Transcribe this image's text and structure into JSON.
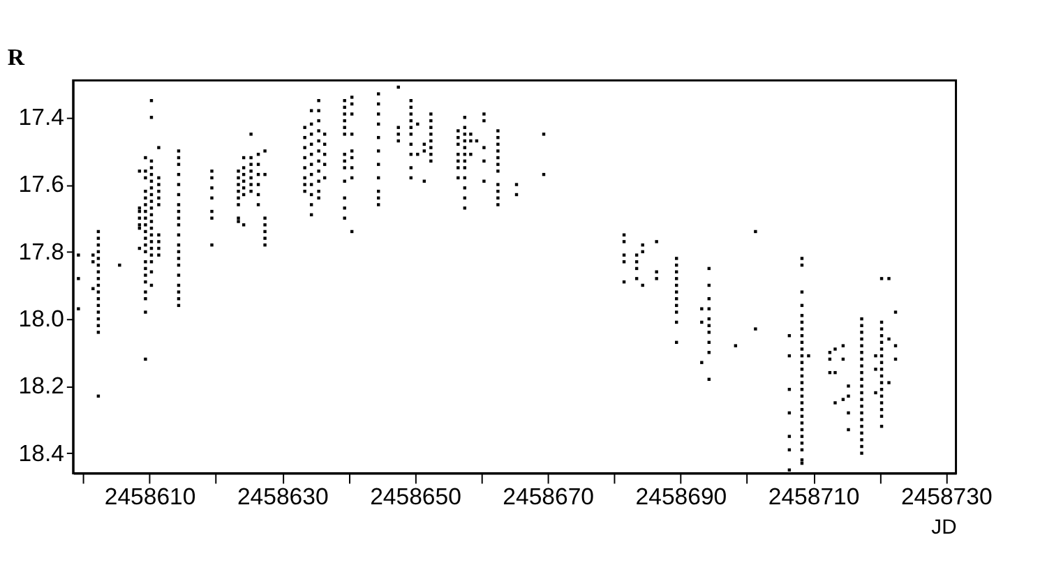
{
  "chart_data": {
    "type": "scatter",
    "xlabel": "JD",
    "ylabel": "R",
    "marker": "square",
    "grid": false,
    "xlim": [
      2458598.5,
      2458731.5
    ],
    "ylim": [
      18.46,
      17.29
    ],
    "xticks": [
      {
        "value": 2458600,
        "label": null
      },
      2458610,
      {
        "value": 2458620,
        "label": null
      },
      2458630,
      {
        "value": 2458640,
        "label": null
      },
      2458650,
      {
        "value": 2458660,
        "label": null
      },
      2458670,
      {
        "value": 2458680,
        "label": null
      },
      2458690,
      {
        "value": 2458700,
        "label": null
      },
      2458710,
      {
        "value": 2458720,
        "label": null
      },
      2458730
    ],
    "yticks": [
      17.4,
      17.6,
      17.8,
      {
        "value": 18,
        "label": "18.0"
      },
      18.2,
      18.4
    ],
    "series": [
      {
        "color": "#000000",
        "x": [
          2458599.3,
          2458599.3,
          2458599.3
        ],
        "values": [
          17.81,
          17.88,
          17.97
        ]
      },
      {
        "color": "#000000",
        "x": [
          2458601.5,
          2458601.5,
          2458601.5
        ],
        "values": [
          17.81,
          17.83,
          17.91
        ]
      },
      {
        "color": "#000000",
        "x": [
          2458602.3,
          2458602.3,
          2458602.3,
          2458602.3,
          2458602.3,
          2458602.3,
          2458602.3,
          2458602.3,
          2458602.3,
          2458602.3,
          2458602.3,
          2458602.3,
          2458602.3,
          2458602.3,
          2458602.3,
          2458602.3,
          2458602.3
        ],
        "values": [
          17.74,
          17.76,
          17.78,
          17.8,
          17.82,
          17.84,
          17.86,
          17.88,
          17.9,
          17.92,
          17.94,
          17.96,
          17.98,
          18.0,
          18.02,
          18.04,
          18.23
        ]
      },
      {
        "color": "#000000",
        "x": [
          2458605.5
        ],
        "values": [
          17.84
        ]
      },
      {
        "color": "#000000",
        "x": [
          2458608.5,
          2458608.5,
          2458608.5,
          2458608.5,
          2458608.5,
          2458608.5,
          2458608.5
        ],
        "values": [
          17.56,
          17.67,
          17.68,
          17.7,
          17.72,
          17.73,
          17.79
        ]
      },
      {
        "color": "#000000",
        "x": [
          2458609.4,
          2458609.4,
          2458609.4,
          2458609.4,
          2458609.4,
          2458609.4,
          2458609.4,
          2458609.4,
          2458609.4,
          2458609.4,
          2458609.4,
          2458609.4,
          2458609.4,
          2458609.4,
          2458609.4,
          2458609.4,
          2458609.4,
          2458609.4,
          2458609.4,
          2458609.4,
          2458609.4
        ],
        "values": [
          17.52,
          17.56,
          17.58,
          17.62,
          17.64,
          17.66,
          17.68,
          17.7,
          17.72,
          17.74,
          17.76,
          17.78,
          17.8,
          17.83,
          17.85,
          17.87,
          17.89,
          17.92,
          17.94,
          17.98,
          18.12
        ]
      },
      {
        "color": "#000000",
        "x": [
          2458610.3,
          2458610.3,
          2458610.3,
          2458610.3,
          2458610.3,
          2458610.3,
          2458610.3,
          2458610.3,
          2458610.3,
          2458610.3,
          2458610.3,
          2458610.3,
          2458610.3,
          2458610.3,
          2458610.3,
          2458610.3,
          2458610.3,
          2458610.3,
          2458610.3,
          2458610.3
        ],
        "values": [
          17.35,
          17.4,
          17.53,
          17.55,
          17.57,
          17.59,
          17.61,
          17.63,
          17.65,
          17.67,
          17.69,
          17.71,
          17.73,
          17.75,
          17.77,
          17.79,
          17.81,
          17.83,
          17.86,
          17.9
        ]
      },
      {
        "color": "#000000",
        "x": [
          2458611.4,
          2458611.4,
          2458611.4,
          2458611.4,
          2458611.4,
          2458611.4,
          2458611.4,
          2458611.4,
          2458611.4,
          2458611.4
        ],
        "values": [
          17.49,
          17.58,
          17.6,
          17.62,
          17.64,
          17.66,
          17.75,
          17.77,
          17.79,
          17.81
        ]
      },
      {
        "color": "#000000",
        "x": [
          2458614.4,
          2458614.4,
          2458614.4,
          2458614.4,
          2458614.4,
          2458614.4,
          2458614.4,
          2458614.4,
          2458614.4,
          2458614.4,
          2458614.4,
          2458614.4,
          2458614.4,
          2458614.4,
          2458614.4,
          2458614.4,
          2458614.4,
          2458614.4,
          2458614.4,
          2458614.4
        ],
        "values": [
          17.5,
          17.52,
          17.54,
          17.57,
          17.6,
          17.63,
          17.66,
          17.68,
          17.7,
          17.72,
          17.75,
          17.78,
          17.8,
          17.82,
          17.84,
          17.87,
          17.9,
          17.92,
          17.94,
          17.96
        ]
      },
      {
        "color": "#000000",
        "x": [
          2458619.4,
          2458619.4,
          2458619.4,
          2458619.4,
          2458619.4,
          2458619.4,
          2458619.4
        ],
        "values": [
          17.56,
          17.58,
          17.61,
          17.64,
          17.68,
          17.7,
          17.78
        ]
      },
      {
        "color": "#000000",
        "x": [
          2458623.4,
          2458623.4,
          2458623.4,
          2458623.4,
          2458623.4,
          2458623.4,
          2458623.4,
          2458623.4
        ],
        "values": [
          17.56,
          17.58,
          17.6,
          17.62,
          17.64,
          17.66,
          17.7,
          17.71
        ]
      },
      {
        "color": "#000000",
        "x": [
          2458624.2,
          2458624.2,
          2458624.2,
          2458624.2,
          2458624.2,
          2458624.2,
          2458624.2
        ],
        "values": [
          17.52,
          17.55,
          17.57,
          17.59,
          17.61,
          17.63,
          17.72
        ]
      },
      {
        "color": "#000000",
        "x": [
          2458625.3,
          2458625.3,
          2458625.3,
          2458625.3,
          2458625.3,
          2458625.3,
          2458625.3
        ],
        "values": [
          17.45,
          17.52,
          17.54,
          17.56,
          17.58,
          17.6,
          17.62
        ]
      },
      {
        "color": "#000000",
        "x": [
          2458626.4,
          2458626.4,
          2458626.4,
          2458626.4,
          2458626.4,
          2458626.4
        ],
        "values": [
          17.51,
          17.54,
          17.57,
          17.6,
          17.63,
          17.66
        ]
      },
      {
        "color": "#000000",
        "x": [
          2458627.4,
          2458627.4,
          2458627.4,
          2458627.4,
          2458627.4,
          2458627.4,
          2458627.4
        ],
        "values": [
          17.5,
          17.57,
          17.7,
          17.72,
          17.74,
          17.76,
          17.78
        ]
      },
      {
        "color": "#000000",
        "x": [
          2458633.4,
          2458633.4,
          2458633.4,
          2458633.4,
          2458633.4,
          2458633.4,
          2458633.4,
          2458633.4
        ],
        "values": [
          17.43,
          17.46,
          17.49,
          17.52,
          17.55,
          17.58,
          17.6,
          17.62
        ]
      },
      {
        "color": "#000000",
        "x": [
          2458634.4,
          2458634.4,
          2458634.4,
          2458634.4,
          2458634.4,
          2458634.4,
          2458634.4,
          2458634.4,
          2458634.4,
          2458634.4,
          2458634.4
        ],
        "values": [
          17.38,
          17.42,
          17.45,
          17.48,
          17.51,
          17.54,
          17.57,
          17.6,
          17.63,
          17.66,
          17.69
        ]
      },
      {
        "color": "#000000",
        "x": [
          2458635.5,
          2458635.5,
          2458635.5,
          2458635.5,
          2458635.5,
          2458635.5,
          2458635.5,
          2458635.5,
          2458635.5,
          2458635.5,
          2458635.5
        ],
        "values": [
          17.35,
          17.38,
          17.41,
          17.44,
          17.47,
          17.5,
          17.53,
          17.56,
          17.59,
          17.62,
          17.64
        ]
      },
      {
        "color": "#000000",
        "x": [
          2458636.4,
          2458636.4,
          2458636.4,
          2458636.4,
          2458636.4
        ],
        "values": [
          17.45,
          17.48,
          17.51,
          17.54,
          17.58
        ]
      },
      {
        "color": "#000000",
        "x": [
          2458639.4,
          2458639.4,
          2458639.4,
          2458639.4,
          2458639.4,
          2458639.4,
          2458639.4,
          2458639.4,
          2458639.4,
          2458639.4,
          2458639.4,
          2458639.4,
          2458639.4
        ],
        "values": [
          17.35,
          17.37,
          17.39,
          17.41,
          17.43,
          17.45,
          17.51,
          17.53,
          17.55,
          17.59,
          17.64,
          17.67,
          17.7
        ]
      },
      {
        "color": "#000000",
        "x": [
          2458640.5,
          2458640.5,
          2458640.5,
          2458640.5,
          2458640.5,
          2458640.5,
          2458640.5,
          2458640.5,
          2458640.5
        ],
        "values": [
          17.34,
          17.36,
          17.39,
          17.45,
          17.5,
          17.52,
          17.55,
          17.58,
          17.74
        ]
      },
      {
        "color": "#000000",
        "x": [
          2458644.5,
          2458644.5,
          2458644.5,
          2458644.5,
          2458644.5,
          2458644.5,
          2458644.5,
          2458644.5,
          2458644.5,
          2458644.5,
          2458644.5
        ],
        "values": [
          17.33,
          17.36,
          17.39,
          17.42,
          17.46,
          17.5,
          17.54,
          17.58,
          17.62,
          17.64,
          17.66
        ]
      },
      {
        "color": "#000000",
        "x": [
          2458647.5,
          2458647.5,
          2458647.5,
          2458647.5
        ],
        "values": [
          17.31,
          17.43,
          17.45,
          17.47
        ]
      },
      {
        "color": "#000000",
        "x": [
          2458649.4,
          2458649.4,
          2458649.4,
          2458649.4,
          2458649.4,
          2458649.4,
          2458649.4,
          2458649.4,
          2458649.4,
          2458649.4
        ],
        "values": [
          17.35,
          17.37,
          17.39,
          17.41,
          17.43,
          17.45,
          17.48,
          17.51,
          17.55,
          17.58
        ]
      },
      {
        "color": "#000000",
        "x": [
          2458650.4,
          2458650.4,
          2458651.4,
          2458651.4,
          2458651.4
        ],
        "values": [
          17.42,
          17.51,
          17.48,
          17.5,
          17.59
        ]
      },
      {
        "color": "#000000",
        "x": [
          2458652.4,
          2458652.4,
          2458652.4,
          2458652.4,
          2458652.4,
          2458652.4,
          2458652.4,
          2458652.4
        ],
        "values": [
          17.39,
          17.41,
          17.43,
          17.45,
          17.47,
          17.49,
          17.51,
          17.53
        ]
      },
      {
        "color": "#000000",
        "x": [
          2458656.5,
          2458656.5,
          2458656.5,
          2458656.5,
          2458656.5,
          2458656.5,
          2458656.5
        ],
        "values": [
          17.44,
          17.46,
          17.48,
          17.51,
          17.53,
          17.55,
          17.58
        ]
      },
      {
        "color": "#000000",
        "x": [
          2458657.5,
          2458657.5,
          2458657.5,
          2458657.5,
          2458657.5,
          2458657.5,
          2458657.5,
          2458657.5,
          2458657.5,
          2458657.5,
          2458657.5,
          2458657.5
        ],
        "values": [
          17.4,
          17.43,
          17.45,
          17.47,
          17.49,
          17.51,
          17.53,
          17.55,
          17.58,
          17.61,
          17.64,
          17.67
        ]
      },
      {
        "color": "#000000",
        "x": [
          2458658.4,
          2458658.4,
          2458658.4,
          2458659.3
        ],
        "values": [
          17.45,
          17.47,
          17.51,
          17.47
        ]
      },
      {
        "color": "#000000",
        "x": [
          2458660.4,
          2458660.4,
          2458660.4,
          2458660.4,
          2458660.4
        ],
        "values": [
          17.39,
          17.41,
          17.49,
          17.53,
          17.59
        ]
      },
      {
        "color": "#000000",
        "x": [
          2458662.5,
          2458662.5,
          2458662.5,
          2458662.5,
          2458662.5,
          2458662.5,
          2458662.5,
          2458662.5,
          2458662.5,
          2458662.5,
          2458662.5
        ],
        "values": [
          17.44,
          17.46,
          17.48,
          17.5,
          17.52,
          17.54,
          17.56,
          17.6,
          17.62,
          17.64,
          17.66
        ]
      },
      {
        "color": "#000000",
        "x": [
          2458665.3,
          2458665.3,
          2458669.4,
          2458669.4
        ],
        "values": [
          17.6,
          17.63,
          17.45,
          17.57
        ]
      },
      {
        "color": "#000000",
        "x": [
          2458681.5,
          2458681.5,
          2458681.5,
          2458681.5,
          2458681.5
        ],
        "values": [
          17.75,
          17.77,
          17.81,
          17.83,
          17.89
        ]
      },
      {
        "color": "#000000",
        "x": [
          2458683.4,
          2458683.4,
          2458683.4,
          2458683.4,
          2458684.3,
          2458684.3,
          2458684.3
        ],
        "values": [
          17.81,
          17.83,
          17.85,
          17.88,
          17.78,
          17.8,
          17.9
        ]
      },
      {
        "color": "#000000",
        "x": [
          2458686.4,
          2458686.4,
          2458686.4
        ],
        "values": [
          17.77,
          17.86,
          17.88
        ]
      },
      {
        "color": "#000000",
        "x": [
          2458689.4,
          2458689.4,
          2458689.4,
          2458689.4,
          2458689.4,
          2458689.4,
          2458689.4,
          2458689.4,
          2458689.4,
          2458689.4,
          2458689.4
        ],
        "values": [
          17.82,
          17.84,
          17.86,
          17.88,
          17.9,
          17.92,
          17.94,
          17.96,
          17.98,
          18.01,
          18.07
        ]
      },
      {
        "color": "#000000",
        "x": [
          2458693.2,
          2458693.2,
          2458693.2
        ],
        "values": [
          17.97,
          18.01,
          18.13
        ]
      },
      {
        "color": "#000000",
        "x": [
          2458694.3,
          2458694.3,
          2458694.3,
          2458694.3,
          2458694.3,
          2458694.3,
          2458694.3,
          2458694.3,
          2458694.3,
          2458694.3
        ],
        "values": [
          17.85,
          17.9,
          17.94,
          17.97,
          18.0,
          18.02,
          18.04,
          18.07,
          18.1,
          18.18
        ]
      },
      {
        "color": "#000000",
        "x": [
          2458698.3,
          2458701.3,
          2458701.3
        ],
        "values": [
          18.08,
          17.74,
          18.03
        ]
      },
      {
        "color": "#000000",
        "x": [
          2458706.4,
          2458706.4,
          2458706.4,
          2458706.4,
          2458706.4,
          2458706.4,
          2458706.4
        ],
        "values": [
          18.05,
          18.11,
          18.21,
          18.28,
          18.35,
          18.39,
          18.45
        ]
      },
      {
        "color": "#000000",
        "x": [
          2458708.3,
          2458708.3,
          2458708.3,
          2458708.3,
          2458708.3,
          2458708.3,
          2458708.3,
          2458708.3,
          2458708.3,
          2458708.3,
          2458708.3,
          2458708.3,
          2458708.3,
          2458708.3,
          2458708.3,
          2458708.3,
          2458708.3,
          2458708.3,
          2458708.3,
          2458708.3,
          2458708.3,
          2458708.3,
          2458708.3,
          2458708.3,
          2458708.3,
          2458708.3,
          2458708.3
        ],
        "values": [
          17.82,
          17.84,
          17.92,
          17.96,
          17.99,
          18.01,
          18.03,
          18.05,
          18.07,
          18.09,
          18.11,
          18.13,
          18.15,
          18.17,
          18.19,
          18.21,
          18.23,
          18.25,
          18.27,
          18.29,
          18.31,
          18.33,
          18.35,
          18.37,
          18.39,
          18.42,
          18.43
        ]
      },
      {
        "color": "#000000",
        "x": [
          2458709.3,
          2458712.5,
          2458712.5,
          2458712.5,
          2458713.3,
          2458713.3,
          2458713.3
        ],
        "values": [
          18.11,
          18.1,
          18.12,
          18.16,
          18.09,
          18.16,
          18.25
        ]
      },
      {
        "color": "#000000",
        "x": [
          2458714.5,
          2458714.5,
          2458714.5,
          2458715.3,
          2458715.3,
          2458715.3,
          2458715.3
        ],
        "values": [
          18.08,
          18.12,
          18.24,
          18.2,
          18.23,
          18.28,
          18.33
        ]
      },
      {
        "color": "#000000",
        "x": [
          2458717.3,
          2458717.3,
          2458717.3,
          2458717.3,
          2458717.3,
          2458717.3,
          2458717.3,
          2458717.3,
          2458717.3,
          2458717.3,
          2458717.3,
          2458717.3,
          2458717.3,
          2458717.3,
          2458717.3,
          2458717.3,
          2458717.3,
          2458717.3,
          2458717.3,
          2458717.3,
          2458717.3
        ],
        "values": [
          18.0,
          18.02,
          18.04,
          18.06,
          18.08,
          18.1,
          18.12,
          18.14,
          18.16,
          18.18,
          18.2,
          18.22,
          18.24,
          18.26,
          18.28,
          18.3,
          18.32,
          18.34,
          18.36,
          18.38,
          18.4
        ]
      },
      {
        "color": "#000000",
        "x": [
          2458719.4,
          2458719.4,
          2458719.4
        ],
        "values": [
          18.11,
          18.15,
          18.22
        ]
      },
      {
        "color": "#000000",
        "x": [
          2458720.3,
          2458720.3,
          2458720.3,
          2458720.3,
          2458720.3,
          2458720.3,
          2458720.3,
          2458720.3,
          2458720.3,
          2458720.3,
          2458720.3,
          2458720.3,
          2458720.3,
          2458720.3,
          2458720.3,
          2458720.3,
          2458720.3
        ],
        "values": [
          17.88,
          18.01,
          18.03,
          18.05,
          18.07,
          18.09,
          18.11,
          18.13,
          18.15,
          18.17,
          18.19,
          18.21,
          18.23,
          18.25,
          18.27,
          18.29,
          18.32
        ]
      },
      {
        "color": "#000000",
        "x": [
          2458721.4,
          2458721.4,
          2458721.4,
          2458722.4,
          2458722.4,
          2458722.4
        ],
        "values": [
          17.88,
          18.06,
          18.19,
          17.98,
          18.08,
          18.12
        ]
      }
    ]
  }
}
